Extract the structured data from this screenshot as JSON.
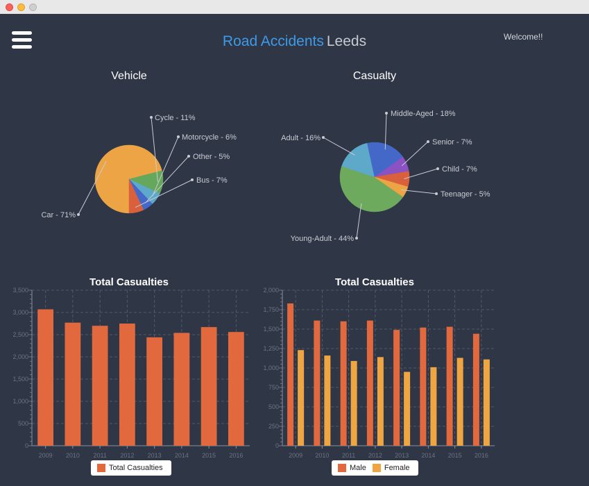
{
  "app": {
    "title_part1": "Road Accidents",
    "title_part2": "Leeds",
    "welcome": "Welcome!!"
  },
  "colors": {
    "background": "#2f3646",
    "accent_blue": "#3d9be9",
    "bar_orange": "#e2683e",
    "bar_light_orange": "#efa642"
  },
  "chart_data": [
    {
      "type": "pie",
      "title": "Vehicle",
      "slices": [
        {
          "label": "Car - 71%",
          "value": 71,
          "color": "#eda444"
        },
        {
          "label": "Cycle - 11%",
          "value": 11,
          "color": "#66a85b"
        },
        {
          "label": "Motorcycle - 6%",
          "value": 6,
          "color": "#5ea9c9"
        },
        {
          "label": "Other - 5%",
          "value": 5,
          "color": "#4468c8"
        },
        {
          "label": "Bus - 7%",
          "value": 7,
          "color": "#d9603c"
        }
      ]
    },
    {
      "type": "pie",
      "title": "Casualty",
      "slices": [
        {
          "label": "Young-Adult - 44%",
          "value": 44,
          "color": "#6daa5e"
        },
        {
          "label": "Adult - 16%",
          "value": 16,
          "color": "#5ea9c9"
        },
        {
          "label": "Middle-Aged - 18%",
          "value": 18,
          "color": "#4468c8"
        },
        {
          "label": "Senior - 7%",
          "value": 7,
          "color": "#8a52c2"
        },
        {
          "label": "Child - 7%",
          "value": 7,
          "color": "#d9603c"
        },
        {
          "label": "Teenager - 5%",
          "value": 5,
          "color": "#eda444"
        }
      ]
    },
    {
      "type": "bar",
      "title": "Total Casualties",
      "categories": [
        "2009",
        "2010",
        "2011",
        "2012",
        "2013",
        "2014",
        "2015",
        "2016"
      ],
      "series": [
        {
          "name": "Total Casualties",
          "values": [
            3070,
            2770,
            2700,
            2750,
            2440,
            2540,
            2670,
            2560
          ],
          "color": "#e2683e"
        }
      ],
      "ylim": [
        0,
        3500
      ],
      "yticks": [
        "0",
        "500",
        "1,000",
        "1,500",
        "2,000",
        "2,500",
        "3,000",
        "3,500"
      ],
      "grid": true,
      "legend": "bottom"
    },
    {
      "type": "bar",
      "title": "Total Casualties",
      "categories": [
        "2009",
        "2010",
        "2011",
        "2012",
        "2013",
        "2014",
        "2015",
        "2016"
      ],
      "series": [
        {
          "name": "Male",
          "values": [
            1830,
            1610,
            1600,
            1610,
            1490,
            1520,
            1530,
            1440
          ],
          "color": "#e2683e"
        },
        {
          "name": "Female",
          "values": [
            1230,
            1160,
            1090,
            1140,
            950,
            1010,
            1130,
            1110
          ],
          "color": "#efa642"
        }
      ],
      "ylim": [
        0,
        2000
      ],
      "yticks": [
        "0",
        "250",
        "500",
        "750",
        "1,000",
        "1,250",
        "1,500",
        "1,750",
        "2,000"
      ],
      "grid": true,
      "legend": "bottom"
    }
  ]
}
